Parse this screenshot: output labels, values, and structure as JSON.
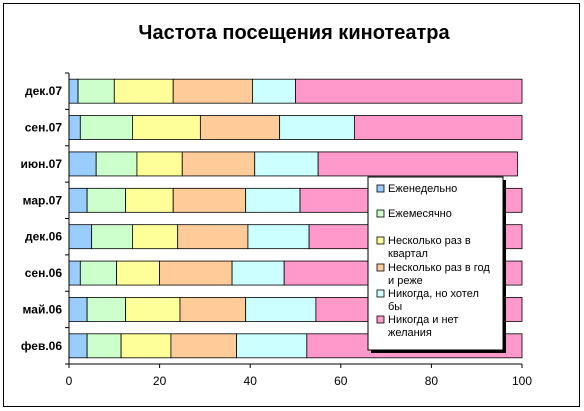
{
  "chart_data": {
    "type": "bar",
    "orientation": "horizontal",
    "stacked": true,
    "title": "Частота посещения кинотеатра",
    "categories": [
      "дек.07",
      "сен.07",
      "июн.07",
      "мар.07",
      "дек.06",
      "сен.06",
      "май.06",
      "фев.06"
    ],
    "xlim": [
      0,
      100
    ],
    "xticks": [
      0,
      20,
      40,
      60,
      80,
      100
    ],
    "grid": false,
    "legend_position": "right",
    "series": [
      {
        "name": "Еженедельно",
        "color": "#99CCFF",
        "values": [
          2,
          2.5,
          6,
          4,
          5,
          2.5,
          4,
          4
        ]
      },
      {
        "name": "Ежемесячно",
        "color": "#CCFFCC",
        "values": [
          8,
          11.5,
          9,
          8.5,
          9,
          8,
          8.5,
          7.5
        ]
      },
      {
        "name": "Несколько раз в квартал",
        "color": "#FFFF99",
        "values": [
          13,
          15,
          10,
          10.5,
          10,
          9.5,
          12,
          11
        ]
      },
      {
        "name": "Несколько раз в год и реже",
        "color": "#FFCC99",
        "values": [
          17.5,
          17.5,
          16,
          16,
          15.5,
          16,
          14.5,
          14.5
        ]
      },
      {
        "name": "Никогда, но хотел бы",
        "color": "#CCFFFF",
        "values": [
          9.5,
          16.5,
          14,
          12,
          13.5,
          11.5,
          15.5,
          15.5
        ]
      },
      {
        "name": "Никогда и нет желания",
        "color": "#FF99CC",
        "values": [
          50,
          37,
          44,
          49,
          47,
          52.5,
          45.5,
          47.5
        ]
      }
    ]
  }
}
